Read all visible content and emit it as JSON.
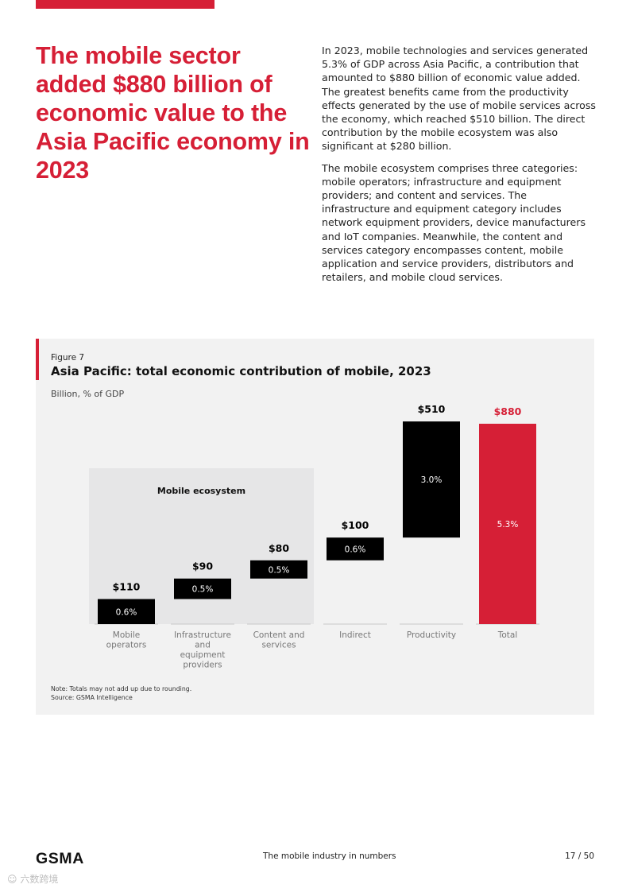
{
  "headline": "The mobile sector added $880 billion of economic value to the Asia Pacific economy in 2023",
  "intro": {
    "p1": "In 2023, mobile technologies and services generated 5.3% of GDP across Asia Pacific, a contribution that amounted to $880 billion of economic value added. The greatest benefits came from the productivity effects generated by the use of mobile services across the economy, which reached $510 billion. The direct contribution by the mobile ecosystem was also significant at $280 billion.",
    "p2": "The mobile ecosystem comprises three categories: mobile operators; infrastructure and equipment providers; and content and services. The infrastructure and equipment category includes network equipment providers, device manufacturers and IoT companies. Meanwhile, the content and services category encompasses content, mobile application and service providers, distributors and retailers, and mobile cloud services."
  },
  "figure": {
    "label": "Figure 7",
    "title": "Asia Pacific: total economic contribution of mobile, 2023",
    "units": "Billion, % of GDP",
    "note": "Note: Totals may not add up due to rounding.",
    "source": "Source: GSMA Intelligence"
  },
  "chart_data": {
    "type": "bar",
    "subtype": "waterfall",
    "title": "Asia Pacific: total economic contribution of mobile, 2023",
    "ylabel": "Billion, % of GDP",
    "group_label": "Mobile ecosystem",
    "categories": [
      [
        "Mobile",
        "operators"
      ],
      [
        "Infrastructure",
        "and",
        "equipment",
        "providers"
      ],
      [
        "Content and",
        "services"
      ],
      [
        "Indirect"
      ],
      [
        "Productivity"
      ],
      [
        "Total"
      ]
    ],
    "values": [
      110,
      90,
      80,
      100,
      510,
      880
    ],
    "value_labels": [
      "$110",
      "$90",
      "$80",
      "$100",
      "$510",
      "$880"
    ],
    "gdp_share_labels": [
      "0.6%",
      "0.5%",
      "0.5%",
      "0.6%",
      "3.0%",
      "5.3%"
    ],
    "is_total": [
      false,
      false,
      false,
      false,
      false,
      true
    ],
    "colors": {
      "bar": "#000000",
      "total": "#d61f36",
      "group_bg": "#e6e6e7",
      "baseline": "#c8c8c8",
      "label": "#000000",
      "total_label": "#d61f36"
    }
  },
  "footer": {
    "logo": "GSMA",
    "center": "The mobile industry in numbers",
    "page": "17 / 50"
  },
  "watermark": "六数跨境",
  "colors": {
    "accent": "#d61f36"
  }
}
